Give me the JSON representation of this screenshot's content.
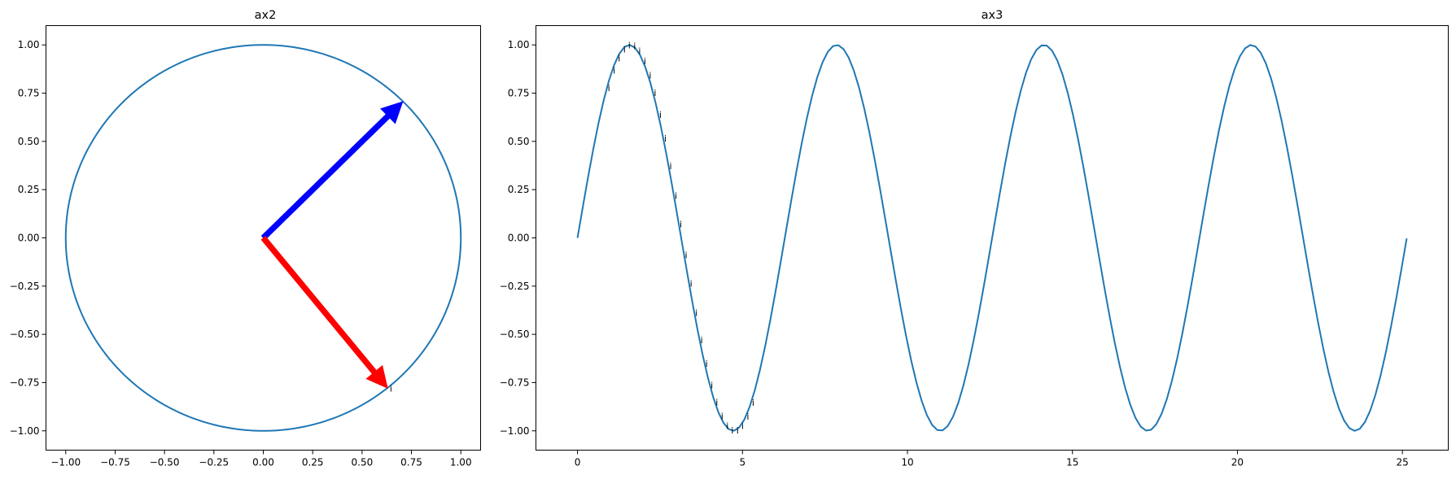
{
  "chart_data": [
    {
      "id": "ax2",
      "type": "line",
      "title": "ax2",
      "xlim": [
        -1.1,
        1.1
      ],
      "ylim": [
        -1.1,
        1.1
      ],
      "xticks": [
        -1.0,
        -0.75,
        -0.5,
        -0.25,
        0.0,
        0.25,
        0.5,
        0.75,
        1.0
      ],
      "yticks": [
        -1.0,
        -0.75,
        -0.5,
        -0.25,
        0.0,
        0.25,
        0.5,
        0.75,
        1.0
      ],
      "xtick_labels": [
        "−1.00",
        "−0.75",
        "−0.50",
        "−0.25",
        "0.00",
        "0.25",
        "0.50",
        "0.75",
        "1.00"
      ],
      "ytick_labels": [
        "−1.00",
        "−0.75",
        "−0.50",
        "−0.25",
        "0.00",
        "0.25",
        "0.50",
        "0.75",
        "1.00"
      ],
      "series": [
        {
          "kind": "unit-circle",
          "color": "#1f77b4",
          "radius": 1.0,
          "center": [
            0,
            0
          ]
        }
      ],
      "arrows": [
        {
          "from": [
            0,
            0
          ],
          "to": [
            0.707,
            0.707
          ],
          "color": "#0000ff"
        },
        {
          "from": [
            0,
            0
          ],
          "to": [
            0.63,
            -0.78
          ],
          "color": "#ff0000"
        }
      ],
      "annotations": [
        {
          "text": "i",
          "x": 0.64,
          "y": -0.78
        }
      ],
      "grid": false,
      "legend": "none"
    },
    {
      "id": "ax3",
      "type": "line",
      "title": "ax3",
      "xlim": [
        -1.26,
        26.39
      ],
      "ylim": [
        -1.1,
        1.1
      ],
      "xticks": [
        0,
        5,
        10,
        15,
        20,
        25
      ],
      "yticks": [
        -1.0,
        -0.75,
        -0.5,
        -0.25,
        0.0,
        0.25,
        0.5,
        0.75,
        1.0
      ],
      "xtick_labels": [
        "0",
        "5",
        "10",
        "15",
        "20",
        "25"
      ],
      "ytick_labels": [
        "−1.00",
        "−0.75",
        "−0.50",
        "−0.25",
        "0.00",
        "0.25",
        "0.50",
        "0.75",
        "1.00"
      ],
      "series": [
        {
          "kind": "sine",
          "color": "#1f77b4",
          "function": "sin(x)",
          "x_range": [
            0,
            25.13
          ],
          "points": 160
        }
      ],
      "annotations_char": "i",
      "annotation_x": [
        0.89,
        1.05,
        1.2,
        1.36,
        1.51,
        1.67,
        1.82,
        1.98,
        2.14,
        2.29,
        2.45,
        2.6,
        2.76,
        2.92,
        3.07,
        3.23,
        3.38,
        3.54,
        3.7,
        3.85,
        4.01,
        4.16,
        4.32,
        4.48,
        4.63,
        4.79,
        4.94,
        5.1,
        5.26
      ],
      "grid": false,
      "legend": "none"
    }
  ]
}
